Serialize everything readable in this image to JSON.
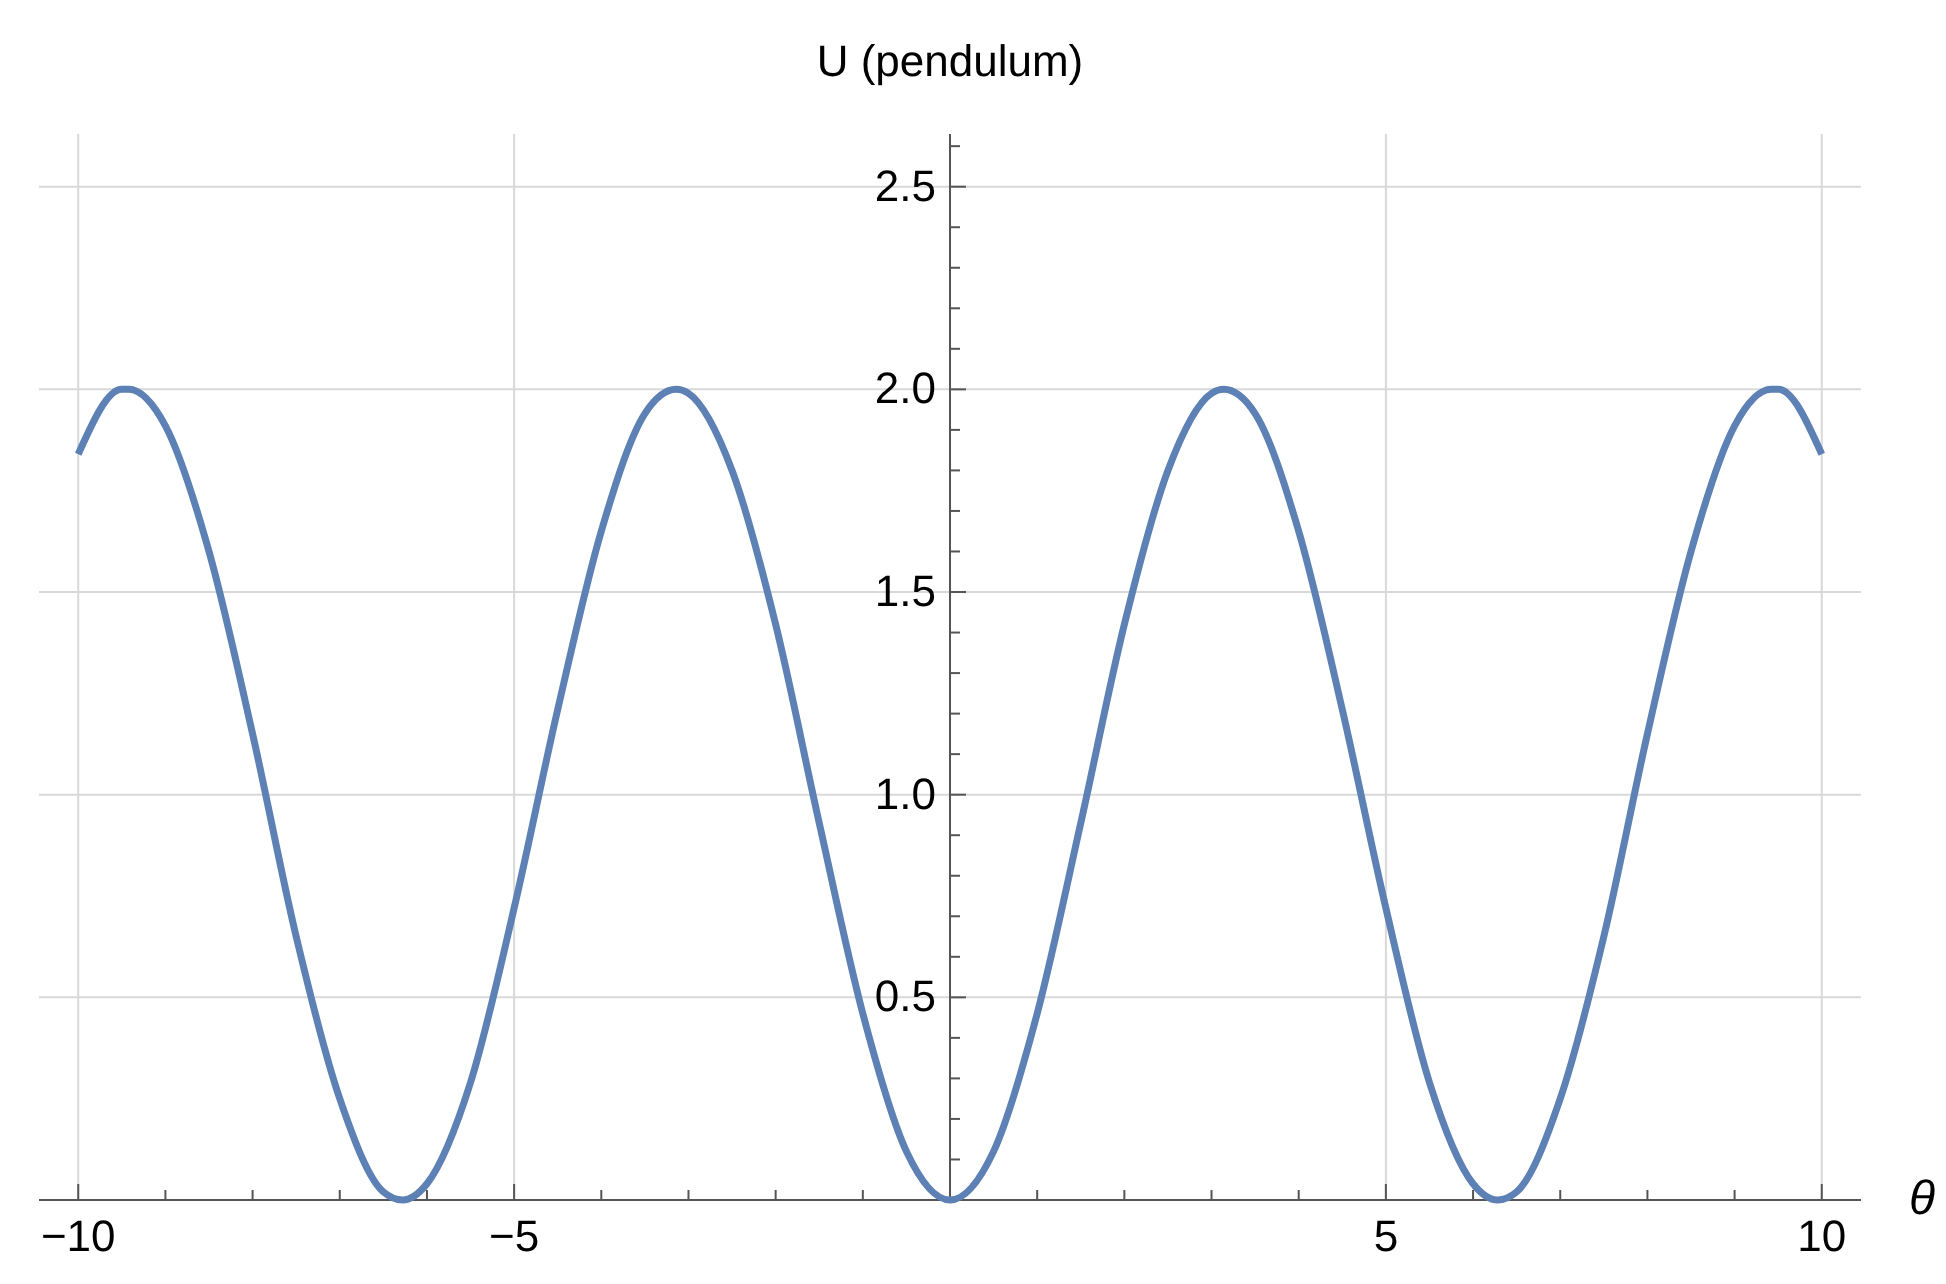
{
  "chart_data": {
    "type": "line",
    "ylabel": "U (pendulum)",
    "xlabel": "θ",
    "x": [
      -10,
      -9.5,
      -9.42,
      -9,
      -8.5,
      -8,
      -7.5,
      -7,
      -6.5,
      -6.28,
      -6,
      -5.5,
      -5,
      -4.5,
      -4,
      -3.5,
      -3.14,
      -3,
      -2.5,
      -2,
      -1.5,
      -1,
      -0.5,
      0,
      0.5,
      1,
      1.5,
      2,
      2.5,
      3,
      3.14,
      3.5,
      4,
      4.5,
      5,
      5.5,
      6,
      6.28,
      6.5,
      7,
      7.5,
      8,
      8.5,
      9,
      9.42,
      9.5,
      10
    ],
    "series": [
      {
        "color": "#5e81b5",
        "values": [
          1.84,
          2.0,
          2.0,
          1.91,
          1.6,
          1.15,
          0.65,
          0.25,
          0.02,
          0.0,
          0.04,
          0.29,
          0.72,
          1.21,
          1.65,
          1.94,
          2.0,
          1.99,
          1.8,
          1.42,
          0.93,
          0.46,
          0.12,
          0,
          0.12,
          0.46,
          0.93,
          1.42,
          1.8,
          1.99,
          2.0,
          1.94,
          1.65,
          1.21,
          0.72,
          0.29,
          0.04,
          0.0,
          0.02,
          0.25,
          0.65,
          1.15,
          1.6,
          1.91,
          2.0,
          2.0,
          1.84
        ]
      }
    ],
    "xlim": [
      -10.45,
      10.45
    ],
    "ylim": [
      0,
      2.63
    ],
    "xticks": [
      {
        "value": -10,
        "label": "−10"
      },
      {
        "value": -9,
        "label": null
      },
      {
        "value": -8,
        "label": null
      },
      {
        "value": -7,
        "label": null
      },
      {
        "value": -6,
        "label": null
      },
      {
        "value": -5,
        "label": "−5"
      },
      {
        "value": -4,
        "label": null
      },
      {
        "value": -3,
        "label": null
      },
      {
        "value": -2,
        "label": null
      },
      {
        "value": -1,
        "label": null
      },
      {
        "value": 1,
        "label": null
      },
      {
        "value": 2,
        "label": null
      },
      {
        "value": 3,
        "label": null
      },
      {
        "value": 4,
        "label": null
      },
      5,
      {
        "value": 6,
        "label": null
      },
      {
        "value": 7,
        "label": null
      },
      {
        "value": 8,
        "label": null
      },
      {
        "value": 9,
        "label": null
      },
      10
    ],
    "yticks": [
      {
        "value": 0.1,
        "label": null
      },
      {
        "value": 0.2,
        "label": null
      },
      {
        "value": 0.3,
        "label": null
      },
      {
        "value": 0.4,
        "label": null
      },
      {
        "value": 0.5,
        "label": "0.5"
      },
      {
        "value": 0.6,
        "label": null
      },
      {
        "value": 0.7,
        "label": null
      },
      {
        "value": 0.8,
        "label": null
      },
      {
        "value": 0.9,
        "label": null
      },
      {
        "value": 1.0,
        "label": "1.0"
      },
      {
        "value": 1.1,
        "label": null
      },
      {
        "value": 1.2,
        "label": null
      },
      {
        "value": 1.3,
        "label": null
      },
      {
        "value": 1.4,
        "label": null
      },
      {
        "value": 1.5,
        "label": "1.5"
      },
      {
        "value": 1.6,
        "label": null
      },
      {
        "value": 1.7,
        "label": null
      },
      {
        "value": 1.8,
        "label": null
      },
      {
        "value": 1.9,
        "label": null
      },
      {
        "value": 2.0,
        "label": "2.0"
      },
      {
        "value": 2.1,
        "label": null
      },
      {
        "value": 2.2,
        "label": null
      },
      {
        "value": 2.3,
        "label": null
      },
      {
        "value": 2.4,
        "label": null
      },
      {
        "value": 2.5,
        "label": "2.5"
      },
      {
        "value": 2.6,
        "label": null
      }
    ],
    "grid": true,
    "marker": "none",
    "line_style": "solid"
  }
}
